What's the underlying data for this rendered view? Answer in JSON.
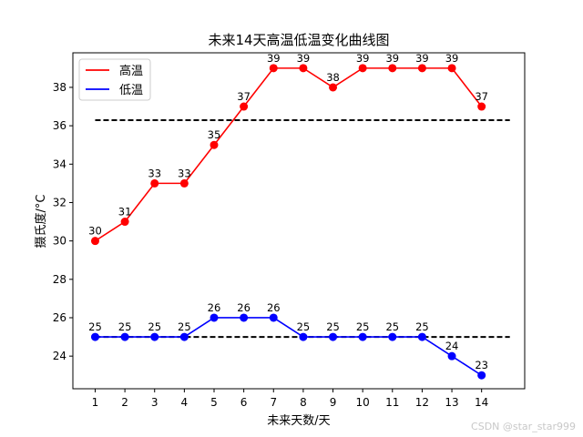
{
  "chart_data": {
    "type": "line",
    "title": "未来14天高温低温变化曲线图",
    "xlabel": "未来天数/天",
    "ylabel": "摄氏度/°C",
    "x": [
      1,
      2,
      3,
      4,
      5,
      6,
      7,
      8,
      9,
      10,
      11,
      12,
      13,
      14
    ],
    "xlim": [
      0.25,
      15.45
    ],
    "ylim": [
      22.3,
      39.8
    ],
    "yticks": [
      24,
      26,
      28,
      30,
      32,
      34,
      36,
      38
    ],
    "series": [
      {
        "name": "高温",
        "color": "#ff0000",
        "values": [
          30,
          31,
          33,
          33,
          35,
          37,
          39,
          39,
          38,
          39,
          39,
          39,
          39,
          37
        ]
      },
      {
        "name": "低温",
        "color": "#0000ff",
        "values": [
          25,
          25,
          25,
          25,
          26,
          26,
          26,
          25,
          25,
          25,
          25,
          25,
          24,
          23
        ]
      }
    ],
    "reference_lines": [
      {
        "y": 36.29,
        "x_range": [
          1,
          14.95
        ],
        "color": "#000000",
        "style": "dashed"
      },
      {
        "y": 25.0,
        "x_range": [
          1,
          14.95
        ],
        "color": "#000000",
        "style": "dashed"
      }
    ],
    "legend_position": "top-left",
    "grid": false,
    "data_labels": true
  },
  "watermark": "CSDN @star_star999"
}
